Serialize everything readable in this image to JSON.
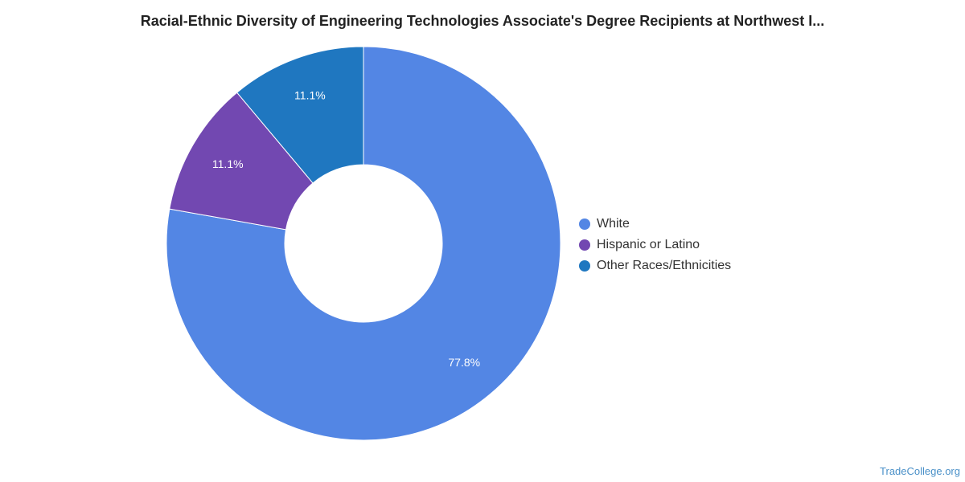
{
  "chart_data": {
    "type": "pie",
    "title": "Racial-Ethnic Diversity of Engineering Technologies Associate's Degree Recipients at Northwest I...",
    "donut": true,
    "slices": [
      {
        "label": "White",
        "value": 77.8,
        "value_label": "77.8%",
        "color": "#5386e4"
      },
      {
        "label": "Hispanic or Latino",
        "value": 11.1,
        "value_label": "11.1%",
        "color": "#7248b1"
      },
      {
        "label": "Other Races/Ethnicities",
        "value": 11.1,
        "value_label": "11.1%",
        "color": "#1f77c0"
      }
    ],
    "legend_position": "right"
  },
  "source": "TradeCollege.org"
}
